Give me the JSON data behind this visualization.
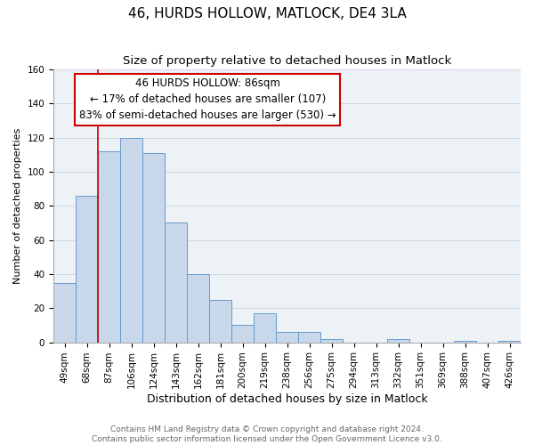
{
  "title": "46, HURDS HOLLOW, MATLOCK, DE4 3LA",
  "subtitle": "Size of property relative to detached houses in Matlock",
  "xlabel": "Distribution of detached houses by size in Matlock",
  "ylabel": "Number of detached properties",
  "bar_labels": [
    "49sqm",
    "68sqm",
    "87sqm",
    "106sqm",
    "124sqm",
    "143sqm",
    "162sqm",
    "181sqm",
    "200sqm",
    "219sqm",
    "238sqm",
    "256sqm",
    "275sqm",
    "294sqm",
    "313sqm",
    "332sqm",
    "351sqm",
    "369sqm",
    "388sqm",
    "407sqm",
    "426sqm"
  ],
  "bar_values": [
    35,
    86,
    112,
    120,
    111,
    70,
    40,
    25,
    10,
    17,
    6,
    6,
    2,
    0,
    0,
    2,
    0,
    0,
    1,
    0,
    1
  ],
  "bar_color": "#c8d8ea",
  "bar_edge_color": "#6699cc",
  "vline_color": "#cc0000",
  "annotation_line1": "46 HURDS HOLLOW: 86sqm",
  "annotation_line2": "← 17% of detached houses are smaller (107)",
  "annotation_line3": "83% of semi-detached houses are larger (530) →",
  "annotation_box_color": "#ffffff",
  "annotation_box_edge_color": "#cc0000",
  "ylim": [
    0,
    160
  ],
  "yticks": [
    0,
    20,
    40,
    60,
    80,
    100,
    120,
    140,
    160
  ],
  "grid_color": "#d0d8e0",
  "bg_color": "#edf2f7",
  "footer_text": "Contains HM Land Registry data © Crown copyright and database right 2024.\nContains public sector information licensed under the Open Government Licence v3.0.",
  "title_fontsize": 11,
  "subtitle_fontsize": 9.5,
  "xlabel_fontsize": 9,
  "ylabel_fontsize": 8,
  "tick_fontsize": 7.5,
  "annotation_fontsize": 8.5,
  "footer_fontsize": 6.5
}
